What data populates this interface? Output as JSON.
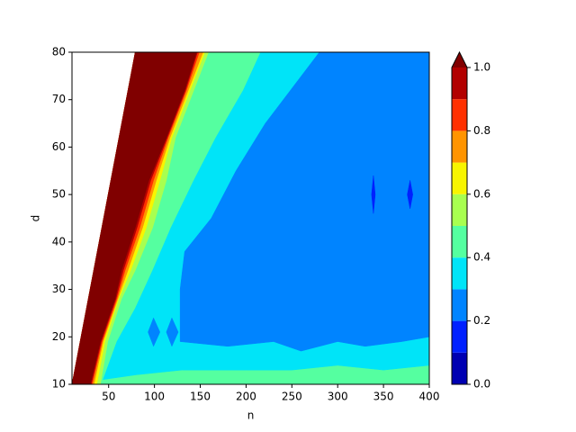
{
  "chart_data": {
    "type": "contourf",
    "xlabel": "n",
    "ylabel": "d",
    "xlim": [
      10,
      400
    ],
    "ylim": [
      10,
      80
    ],
    "xticks": [
      50,
      100,
      150,
      200,
      250,
      300,
      350,
      400
    ],
    "yticks": [
      10,
      20,
      30,
      40,
      50,
      60,
      70,
      80
    ],
    "levels": [
      0,
      0.1,
      0.2,
      0.3,
      0.4,
      0.5,
      0.6,
      0.7,
      0.8,
      0.9,
      1.0
    ],
    "colors": [
      "#0000b2",
      "#0020ff",
      "#0084ff",
      "#00e4f8",
      "#55ffa0",
      "#a8ff50",
      "#f8f500",
      "#ff9400",
      "#ff3000",
      "#b20000",
      "#800000"
    ],
    "colorbar_ticks": [
      {
        "value": 0,
        "label": "0.0"
      },
      0.2,
      0.4,
      0.6,
      0.8,
      {
        "value": 1,
        "label": "1.0"
      }
    ],
    "regions": [
      {
        "level": 0.4,
        "n": [
          10,
          400,
          400,
          79
        ],
        "d": [
          10,
          10,
          80,
          80
        ]
      },
      {
        "level": 0.3,
        "n": [
          44,
          80,
          130,
          200,
          250,
          300,
          350,
          400,
          400,
          216,
          197,
          167,
          143,
          118,
          98,
          79,
          59
        ],
        "d": [
          11,
          12,
          13,
          13,
          13,
          14,
          13,
          14,
          80,
          80,
          72,
          62,
          53,
          43,
          34,
          26,
          19
        ]
      },
      {
        "level": 0.2,
        "n": [
          128,
          180,
          230,
          260,
          300,
          330,
          370,
          400,
          400,
          280,
          221,
          189,
          162,
          133,
          128
        ],
        "d": [
          19,
          18,
          19,
          17,
          19,
          18,
          19,
          20,
          80,
          80,
          65,
          55,
          45,
          38,
          30
        ]
      },
      {
        "level": 0.2,
        "n": [
          93,
          99,
          106,
          99
        ],
        "d": [
          21,
          24,
          21,
          18
        ]
      },
      {
        "level": 0.2,
        "n": [
          113,
          119,
          126,
          119
        ],
        "d": [
          21,
          24,
          21,
          18
        ]
      },
      {
        "level": 0.1,
        "n": [
          337,
          339,
          341,
          339
        ],
        "d": [
          50,
          54,
          50,
          46
        ]
      },
      {
        "level": 0.1,
        "n": [
          376,
          379,
          382,
          379
        ],
        "d": [
          50,
          53,
          50,
          47
        ]
      },
      {
        "level": 0.5,
        "n": [
          10,
          41,
          49,
          64,
          79,
          98,
          113,
          123,
          143,
          159,
          79
        ],
        "d": [
          10,
          10,
          19,
          28,
          34,
          43,
          53,
          62,
          72,
          80,
          80
        ]
      },
      {
        "level": 0.6,
        "n": [
          10,
          37,
          46,
          61,
          74,
          91,
          106,
          119,
          139,
          155,
          79
        ],
        "d": [
          10,
          10,
          19,
          28,
          34,
          43,
          53,
          62,
          72,
          80,
          80
        ]
      },
      {
        "level": 0.7,
        "n": [
          10,
          34,
          44,
          60,
          71,
          87,
          102,
          117,
          137,
          153,
          79
        ],
        "d": [
          10,
          10,
          19,
          28,
          34,
          43,
          53,
          62,
          72,
          80,
          80
        ]
      },
      {
        "level": 0.8,
        "n": [
          10,
          32,
          43,
          59,
          68,
          84,
          99,
          115,
          135,
          149,
          79
        ],
        "d": [
          10,
          10,
          19,
          28,
          34,
          43,
          53,
          62,
          72,
          80,
          80
        ]
      },
      {
        "level": 0.9,
        "n": [
          10,
          31,
          42,
          58,
          66,
          81,
          96,
          114,
          134,
          147,
          79
        ],
        "d": [
          10,
          10,
          19,
          28,
          34,
          43,
          53,
          62,
          72,
          80,
          80
        ]
      },
      {
        "level": 1.0,
        "n": [
          10,
          30,
          41,
          57,
          64,
          79,
          94,
          113,
          133,
          146,
          79
        ],
        "d": [
          10,
          10,
          19,
          28,
          34,
          43,
          53,
          62,
          72,
          80,
          80
        ]
      }
    ]
  }
}
